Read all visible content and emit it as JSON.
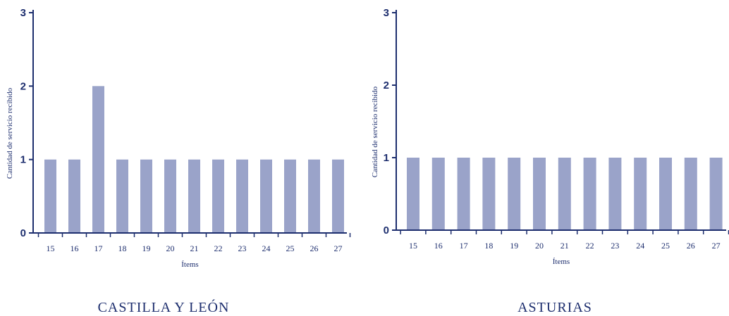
{
  "chart_data": [
    {
      "type": "bar",
      "title": "CASTILLA Y LEÓN",
      "xlabel": "Ítems",
      "ylabel": "Cantidad de servicio recibido",
      "ylim": [
        0,
        3
      ],
      "yticks": [
        0,
        1,
        2,
        3
      ],
      "categories": [
        "15",
        "16",
        "17",
        "18",
        "19",
        "20",
        "21",
        "22",
        "23",
        "24",
        "25",
        "26",
        "27"
      ],
      "values": [
        1,
        1,
        2,
        1,
        1,
        1,
        1,
        1,
        1,
        1,
        1,
        1,
        1
      ],
      "bar_color": "#9aa3c9",
      "text_color": "#1d2e6e"
    },
    {
      "type": "bar",
      "title": "ASTURIAS",
      "xlabel": "Ítems",
      "ylabel": "Cantidad de servicio recibido",
      "ylim": [
        0,
        3
      ],
      "yticks": [
        0,
        1,
        2,
        3
      ],
      "categories": [
        "15",
        "16",
        "17",
        "18",
        "19",
        "20",
        "21",
        "22",
        "23",
        "24",
        "25",
        "26",
        "27"
      ],
      "values": [
        1,
        1,
        1,
        1,
        1,
        1,
        1,
        1,
        1,
        1,
        1,
        1,
        1
      ],
      "bar_color": "#9aa3c9",
      "text_color": "#1d2e6e"
    }
  ]
}
